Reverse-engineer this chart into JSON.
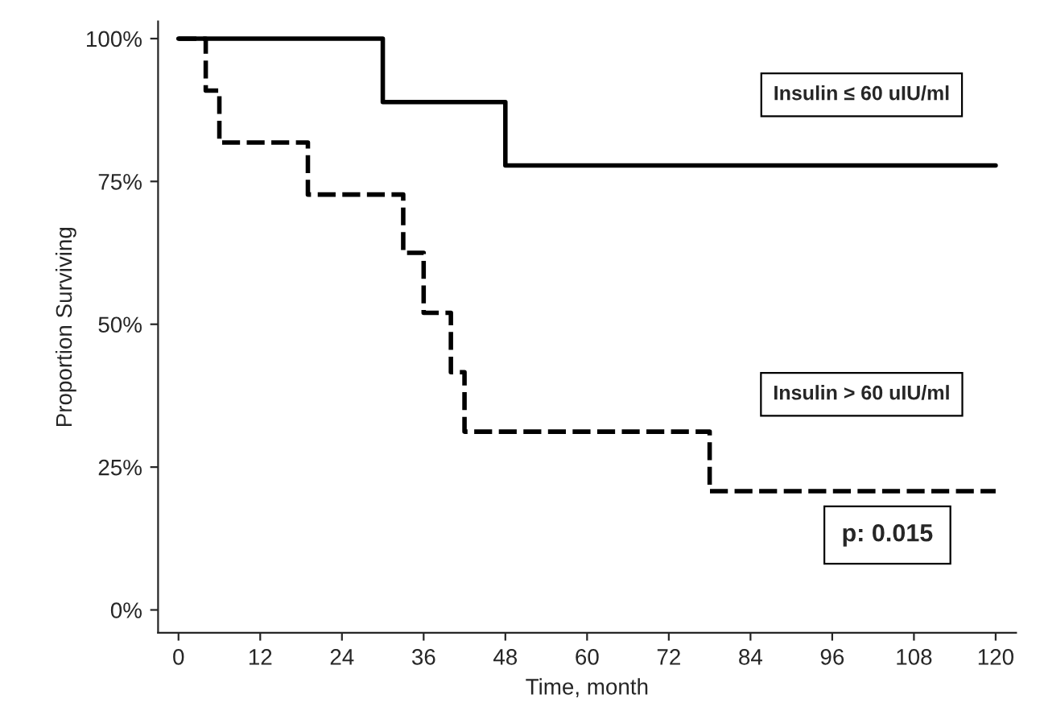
{
  "chart_data": {
    "type": "step",
    "xlabel": "Time, month",
    "ylabel": "Proportion Surviving",
    "xlim": [
      -3,
      123
    ],
    "ylim": [
      -4,
      103
    ],
    "xticks": [
      0,
      12,
      24,
      36,
      48,
      60,
      72,
      84,
      96,
      108,
      120
    ],
    "yticks": [
      {
        "value": 0,
        "label": "0%"
      },
      {
        "value": 25,
        "label": "25%"
      },
      {
        "value": 50,
        "label": "50%"
      },
      {
        "value": 75,
        "label": "75%"
      },
      {
        "value": 100,
        "label": "100%"
      }
    ],
    "grid": false,
    "legend": false,
    "series": [
      {
        "name": "Insulin ≤ 60 uIU/ml",
        "color": "#000000",
        "line_style": "solid",
        "x": [
          0,
          30,
          48,
          120
        ],
        "values": [
          100,
          88.9,
          77.8,
          77.8
        ]
      },
      {
        "name": "Insulin > 60 uIU/ml",
        "color": "#000000",
        "line_style": "dashed",
        "x": [
          0,
          4,
          6,
          19,
          33,
          36,
          40,
          42,
          78,
          120
        ],
        "values": [
          100,
          90.9,
          81.8,
          72.7,
          62.5,
          52,
          41.6,
          31.2,
          20.8,
          20.8
        ]
      }
    ],
    "annotations": [
      "p: 0.015"
    ]
  }
}
